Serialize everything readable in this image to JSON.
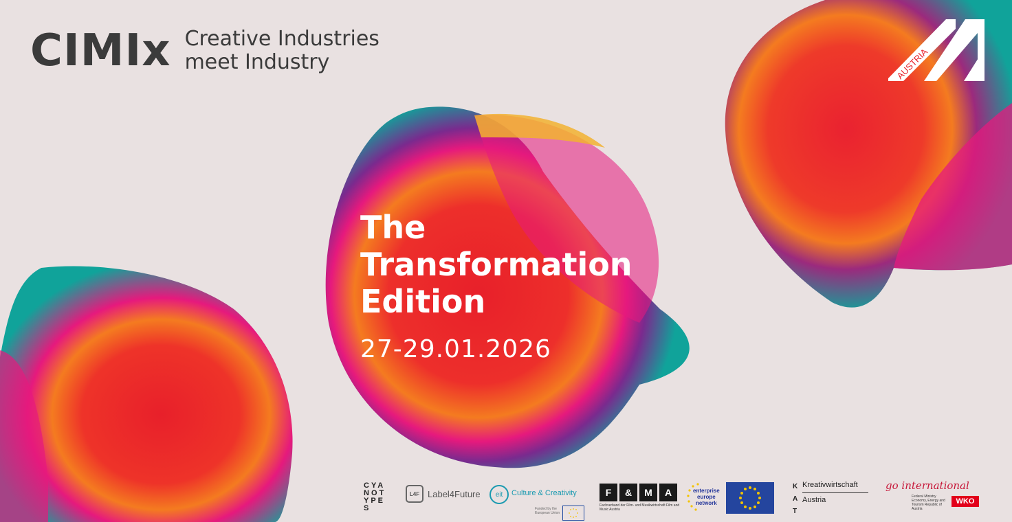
{
  "brand": {
    "logo_text": "CIMIx",
    "tagline_line1": "Creative Industries",
    "tagline_line2": "meet Industry"
  },
  "event": {
    "line1": "The",
    "line2": "Transformation",
    "line3": "Edition",
    "date": "27-29.01.2026"
  },
  "badge": {
    "text": "AUSTRIA"
  },
  "partners": {
    "cyanotypes": [
      "CYA",
      "NOT",
      "YPE",
      "S"
    ],
    "label4future_mark": "L4F",
    "label4future": "Label4Future",
    "eit_mark": "eit",
    "eit_name": "Culture & Creativity",
    "eit_funded": "Funded by the European Union",
    "fma_letters": [
      "F",
      "&",
      "M",
      "A"
    ],
    "fma_caption": "Fachverband der Film- und Musikwirtschaft Film and Music Austria",
    "een": [
      "enterprise",
      "europe",
      "network"
    ],
    "kat_letters": [
      "K",
      "A",
      "T"
    ],
    "kat_name1": "Kreativwirtschaft",
    "kat_name2": "Austria",
    "go_script": "go international",
    "go_caption": "Federal Ministry Economy, Energy and Tourism Republic of Austria",
    "wko": "WKO"
  },
  "colors": {
    "background": "#e9e1e1",
    "teal": "#10a39a",
    "red": "#e8202a",
    "orange": "#f47b20",
    "magenta": "#e6197d",
    "yellow": "#f2b230",
    "text_dark": "#3b3b3b",
    "text_light": "#ffffff"
  }
}
